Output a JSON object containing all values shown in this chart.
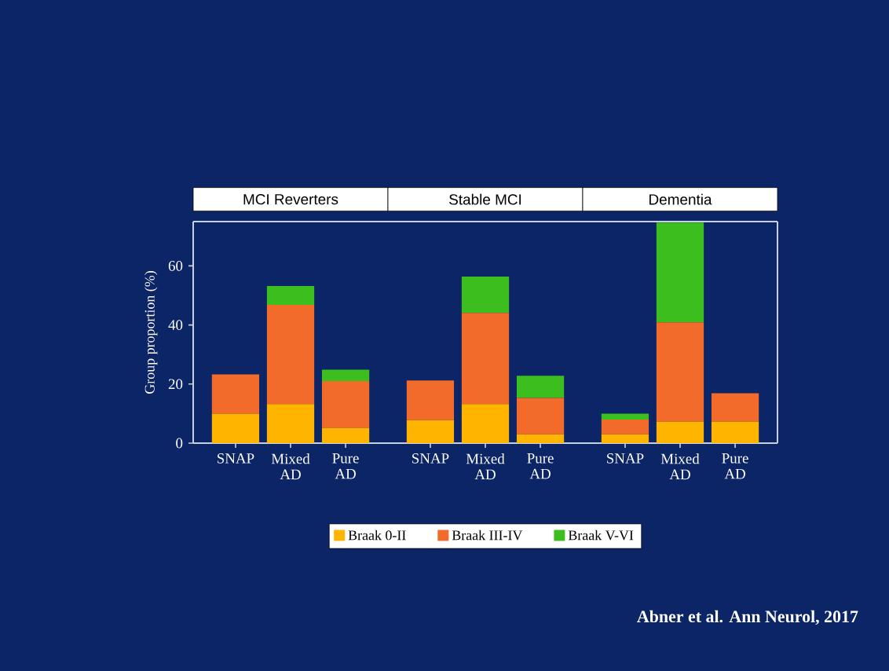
{
  "chart_data": [
    {
      "type": "bar",
      "title": "MCI Reverters",
      "ylabel": "Group proportion (%)",
      "categories": [
        "SNAP",
        "Mixed AD",
        "Pure AD"
      ],
      "stacked": true,
      "legend": "bottom",
      "ylim": [
        0,
        75
      ],
      "yticks": [
        0,
        20,
        40,
        60
      ],
      "series": [
        {
          "name": "Braak 0-II",
          "color": "#ffb400",
          "values": [
            10,
            13.2,
            5.2
          ]
        },
        {
          "name": "Braak III-IV",
          "color": "#f26b2a",
          "values": [
            13.3,
            33.6,
            15.8
          ]
        },
        {
          "name": "Braak V-VI",
          "color": "#3cbf1e",
          "values": [
            0,
            6.4,
            3.9
          ]
        }
      ],
      "annotations": [
        "Abner et al. Ann Neurol, 2017"
      ]
    },
    {
      "type": "bar",
      "title": "Stable MCI",
      "categories": [
        "SNAP",
        "Mixed AD",
        "Pure AD"
      ],
      "stacked": true,
      "ylim": [
        0,
        75
      ],
      "tick_labels": "x",
      "series": [
        {
          "color": "#ffb400",
          "values": [
            7.8,
            13.2,
            3.0
          ]
        },
        {
          "color": "#f26b2a",
          "values": [
            13.4,
            30.9,
            12.3
          ]
        },
        {
          "color": "#3cbf1e",
          "values": [
            0,
            12.3,
            7.5
          ]
        }
      ]
    },
    {
      "type": "bar",
      "title": "Dementia",
      "categories": [
        "SNAP",
        "Mixed AD",
        "Pure AD"
      ],
      "stacked": true,
      "ylim": [
        0,
        75
      ],
      "tick_labels": "x",
      "series": [
        {
          "color": "#ffb400",
          "values": [
            3.0,
            7.3,
            7.3
          ]
        },
        {
          "color": "#f26b2a",
          "values": [
            5.0,
            33.6,
            9.6
          ]
        },
        {
          "color": "#3cbf1e",
          "values": [
            2.0,
            33.8,
            0
          ]
        }
      ]
    }
  ]
}
